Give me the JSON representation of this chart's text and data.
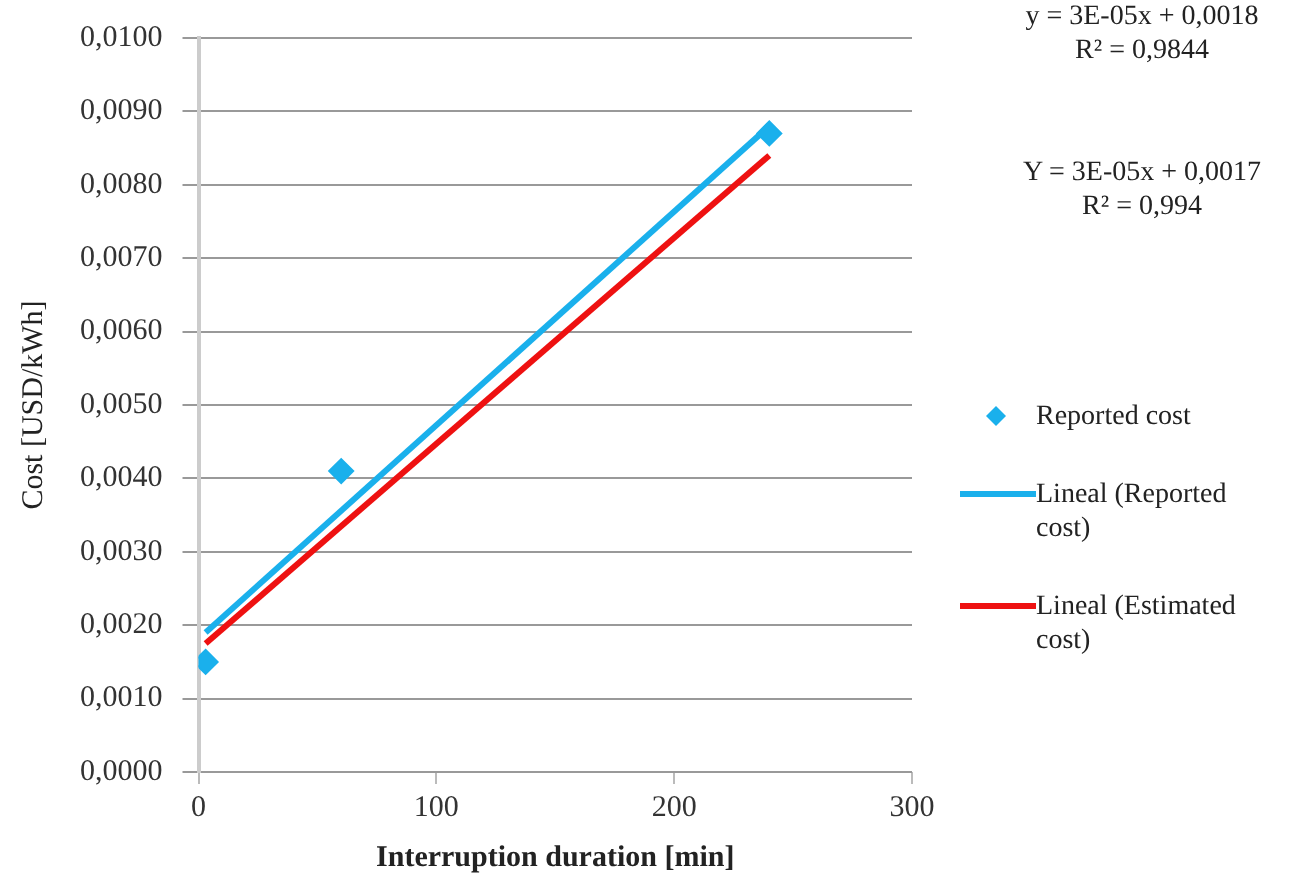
{
  "chart_data": {
    "type": "scatter",
    "xlabel": "Interruption duration [min]",
    "ylabel": "Cost [USD/kWh]",
    "xlim": [
      0,
      300
    ],
    "xticks": [
      0,
      100,
      200,
      300
    ],
    "ylim": [
      0,
      0.01
    ],
    "yticks": [
      {
        "value": 0,
        "label": "0,0000"
      },
      {
        "value": 0.001,
        "label": "0,0010"
      },
      {
        "value": 0.002,
        "label": "0,0020"
      },
      {
        "value": 0.003,
        "label": "0,0030"
      },
      {
        "value": 0.004,
        "label": "0,0040"
      },
      {
        "value": 0.005,
        "label": "0,0050"
      },
      {
        "value": 0.006,
        "label": "0,0060"
      },
      {
        "value": 0.007,
        "label": "0,0070"
      },
      {
        "value": 0.008,
        "label": "0,0080"
      },
      {
        "value": 0.009,
        "label": "0,0090"
      },
      {
        "value": 0.01,
        "label": "0,0100"
      }
    ],
    "grid": "y",
    "legend": "right",
    "series": [
      {
        "name": "Reported cost",
        "marker": "diamond",
        "color": "#1ab0ec",
        "x": [
          3,
          60,
          240
        ],
        "values": [
          0.0015,
          0.0041,
          0.0087
        ]
      },
      {
        "name": "Lineal (Reported cost)",
        "type": "line",
        "marker": "none",
        "color": "#1ab0ec",
        "x": [
          3,
          240
        ],
        "values": [
          0.0019,
          0.0088
        ]
      },
      {
        "name": "Lineal (Estimated cost)",
        "type": "line",
        "marker": "none",
        "color": "#ee1111",
        "x": [
          3,
          240
        ],
        "values": [
          0.00175,
          0.0084
        ]
      }
    ],
    "annotations": [
      "y = 3E-05x + 0,0018\nR² = 0,9844",
      "Y = 3E-05x + 0,0017\nR² = 0,994"
    ]
  }
}
